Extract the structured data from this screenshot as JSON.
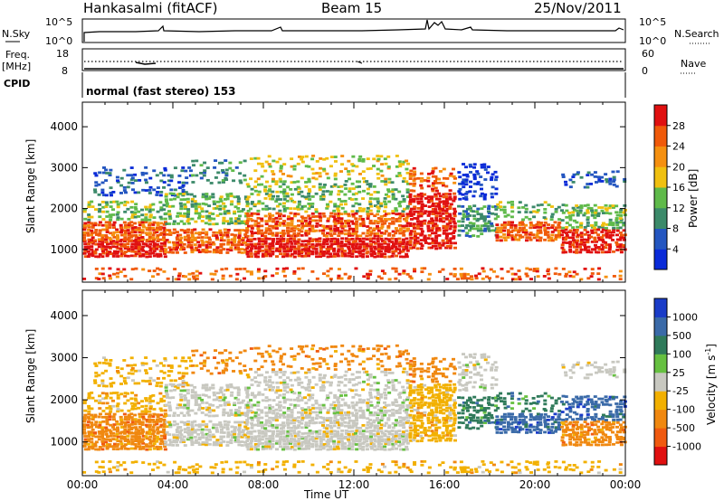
{
  "header": {
    "station": "Hankasalmi (fitACF)",
    "beam": "Beam 15",
    "date": "25/Nov/2011"
  },
  "noise_panel": {
    "left_label": "N.Sky",
    "right_label": "N.Search",
    "ticks_top": "10^5",
    "ticks_bottom": "10^0"
  },
  "freq_panel": {
    "label_line1": "Freq.",
    "label_line2": "[MHz]",
    "left_ticks": [
      "18",
      "8"
    ],
    "right_ticks": [
      "60",
      "0"
    ],
    "right_label": "Nave"
  },
  "cpid": {
    "label": "CPID",
    "text": "normal (fast stereo) 153"
  },
  "colors": {
    "power_scale": [
      "#0a2bd8",
      "#2456c0",
      "#3c8a6a",
      "#5fba4a",
      "#f0c010",
      "#f59010",
      "#f05a0a",
      "#e01010"
    ],
    "velocity_scale": [
      "#1a3cc8",
      "#3a6aa8",
      "#2f7a5a",
      "#66c040",
      "#c8c8c0",
      "#f2b000",
      "#f08810",
      "#f05a10",
      "#e01010"
    ]
  },
  "chart_data": [
    {
      "type": "heatmap",
      "name": "power",
      "ylabel": "Slant Range [km]",
      "xlabel": "",
      "x_ticks": [
        "00:00",
        "04:00",
        "08:00",
        "12:00",
        "16:00",
        "20:00",
        "00:00"
      ],
      "y_ticks": [
        "1000",
        "2000",
        "3000",
        "4000"
      ],
      "ylim": [
        200,
        4600
      ],
      "colorbar_label": "Power [dB]",
      "colorbar_ticks": [
        "28",
        "24",
        "20",
        "16",
        "12",
        "8",
        "4"
      ]
    },
    {
      "type": "heatmap",
      "name": "velocity",
      "ylabel": "Slant Range [km]",
      "xlabel": "Time UT",
      "x_ticks": [
        "00:00",
        "04:00",
        "08:00",
        "12:00",
        "16:00",
        "20:00",
        "00:00"
      ],
      "y_ticks": [
        "1000",
        "2000",
        "3000",
        "4000"
      ],
      "ylim": [
        200,
        4600
      ],
      "colorbar_label": "Velocity [m s-1]",
      "colorbar_ticks": [
        "1000",
        "500",
        "100",
        "25",
        "-25",
        "-100",
        "-500",
        "-1000"
      ]
    }
  ]
}
